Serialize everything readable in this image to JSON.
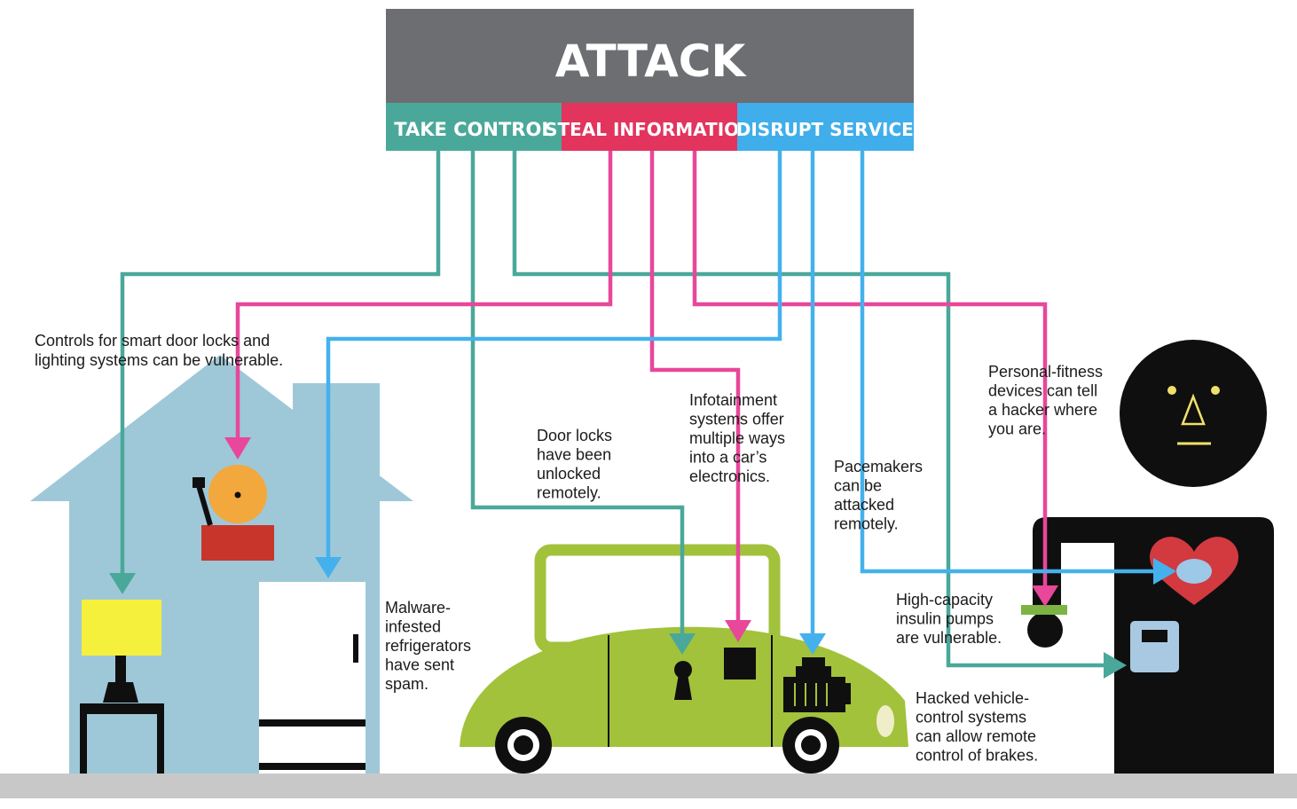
{
  "header": {
    "title": "ATTACK",
    "categories": [
      {
        "label": "TAKE CONTROL"
      },
      {
        "label": "STEAL INFORMATION"
      },
      {
        "label": "DISRUPT SERVICES"
      }
    ]
  },
  "colors": {
    "header_gray": "#6d6e71",
    "take_control": "#4aa89a",
    "steal_information": "#e2345d",
    "disrupt_services": "#40aeea",
    "line_teal": "#4aa89a",
    "line_pink": "#e8479a",
    "line_blue": "#45b1ec",
    "house": "#9ec8d8",
    "car": "#a2c23c",
    "person": "#0f0f10",
    "heart": "#d23a40",
    "lamp_shade": "#f5f03c",
    "ground": "#c8c8c8"
  },
  "annotations": {
    "smart_home": [
      "Controls for smart door locks and",
      "lighting systems can be vulnerable."
    ],
    "door_locks": [
      "Door locks",
      "have been",
      "unlocked",
      "remotely."
    ],
    "infotainment": [
      "Infotainment",
      "systems offer",
      "multiple ways",
      "into a car’s",
      "electronics."
    ],
    "pacemakers": [
      "Pacemakers",
      "can be",
      "attacked",
      "remotely."
    ],
    "fitness": [
      "Personal-fitness",
      "devices can tell",
      "a hacker where",
      "you are."
    ],
    "insulin": [
      "High-capacity",
      "insulin pumps",
      "are vulnerable."
    ],
    "fridge": [
      "Malware-",
      "infested",
      "refrigerators",
      "have sent",
      "spam."
    ],
    "vehicle_control": [
      "Hacked vehicle-",
      "control systems",
      "can allow remote",
      "control of brakes."
    ]
  }
}
